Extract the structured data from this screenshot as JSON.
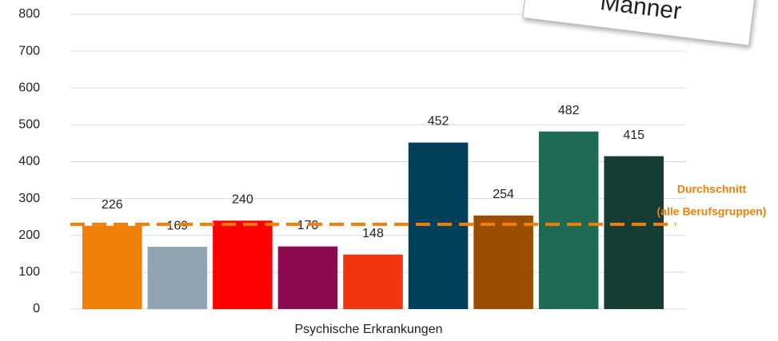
{
  "chart_data": {
    "type": "bar",
    "categories": [
      "Psychische Erkrankungen"
    ],
    "series": [
      {
        "color": "#f07f09",
        "values": [
          226
        ]
      },
      {
        "color": "#8fa3b0",
        "values": [
          169
        ]
      },
      {
        "color": "#ff0000",
        "values": [
          240
        ]
      },
      {
        "color": "#8b0a50",
        "values": [
          170
        ]
      },
      {
        "color": "#f0350f",
        "values": [
          148
        ]
      },
      {
        "color": "#00405a",
        "values": [
          452
        ]
      },
      {
        "color": "#9a4f00",
        "values": [
          254
        ]
      },
      {
        "color": "#1f6a55",
        "values": [
          482
        ]
      },
      {
        "color": "#163d34",
        "values": [
          415
        ]
      }
    ],
    "ylim": [
      0,
      800
    ],
    "yticks": [
      0,
      100,
      200,
      300,
      400,
      500,
      600,
      700,
      800
    ],
    "grid": true,
    "reference_line": {
      "value": 230,
      "color": "#f07f09",
      "label_lines": [
        "Durchschnitt",
        "(alle Berufsgruppen)"
      ]
    },
    "annotation": "Männer"
  }
}
